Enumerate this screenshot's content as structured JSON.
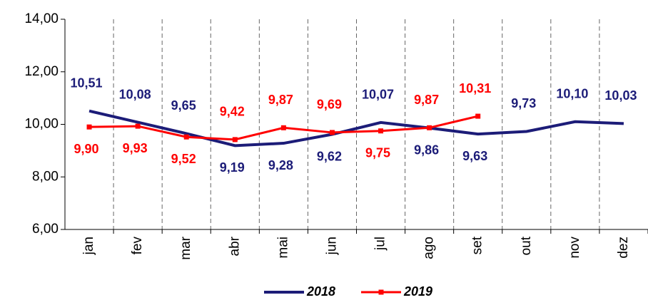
{
  "chart_data": {
    "type": "line",
    "categories": [
      "jan",
      "fev",
      "mar",
      "abr",
      "mai",
      "jun",
      "jul",
      "ago",
      "set",
      "out",
      "nov",
      "dez"
    ],
    "series": [
      {
        "name": "2018",
        "color": "#1c1c78",
        "marker": "none",
        "values": [
          10.51,
          10.08,
          9.65,
          9.19,
          9.28,
          9.62,
          10.07,
          9.86,
          9.63,
          9.73,
          10.1,
          10.03
        ],
        "value_labels": [
          "10,51",
          "10,08",
          "9,65",
          "9,19",
          "9,28",
          "9,62",
          "10,07",
          "9,86",
          "9,63",
          "9,73",
          "10,10",
          "10,03"
        ]
      },
      {
        "name": "2019",
        "color": "#ff0000",
        "marker": "square",
        "values": [
          9.9,
          9.93,
          9.52,
          9.42,
          9.87,
          9.69,
          9.75,
          9.87,
          10.31,
          null,
          null,
          null
        ],
        "value_labels": [
          "9,90",
          "9,93",
          "9,52",
          "9,42",
          "9,87",
          "9,69",
          "9,75",
          "9,87",
          "10,31",
          null,
          null,
          null
        ]
      }
    ],
    "ylim": [
      6,
      14
    ],
    "yticks": [
      {
        "value": 6,
        "label": "6,00"
      },
      {
        "value": 8,
        "label": "8,00"
      },
      {
        "value": 10,
        "label": "10,00"
      },
      {
        "value": 12,
        "label": "12,00"
      },
      {
        "value": 14,
        "label": "14,00"
      }
    ],
    "legend": "bottom"
  }
}
